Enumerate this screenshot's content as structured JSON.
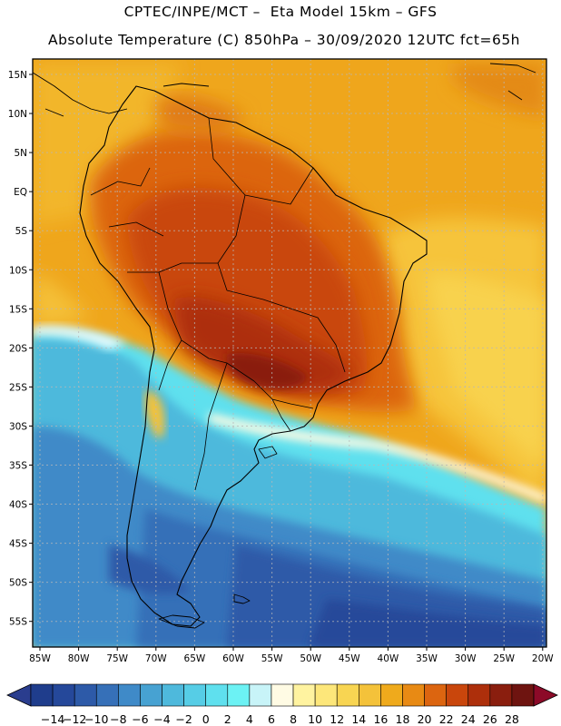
{
  "header": {
    "line1": "CPTEC/INPE/MCT –  Eta Model 15km – GFS",
    "line2": "Absolute Temperature (C) 850hPa – 30/09/2020 12UTC fct=65h"
  },
  "axes": {
    "lat_labels": [
      "15N",
      "10N",
      "5N",
      "EQ",
      "5S",
      "10S",
      "15S",
      "20S",
      "25S",
      "30S",
      "35S",
      "40S",
      "45S",
      "50S",
      "55S"
    ],
    "lon_labels": [
      "85W",
      "80W",
      "75W",
      "70W",
      "65W",
      "60W",
      "55W",
      "50W",
      "45W",
      "40W",
      "35W",
      "30W",
      "25W",
      "20W"
    ]
  },
  "colorbar": {
    "labels": [
      "-14",
      "-12",
      "-10",
      "-8",
      "-6",
      "-4",
      "-2",
      "0",
      "2",
      "4",
      "6",
      "8",
      "10",
      "12",
      "14",
      "16",
      "18",
      "20",
      "22",
      "24",
      "26",
      "28"
    ],
    "colors": [
      "#1f3d8c",
      "#25489a",
      "#2d5aa8",
      "#3670b8",
      "#3f8ac8",
      "#47a2d2",
      "#4eb9dc",
      "#56cde6",
      "#5fe0ee",
      "#6cf2f4",
      "#c8f4f8",
      "#fffbe4",
      "#fff3a0",
      "#fde77a",
      "#f8d552",
      "#f4c23a",
      "#efaa1c",
      "#e88a14",
      "#dc6510",
      "#c9460c",
      "#ad2f0b",
      "#8a1e0e",
      "#6e1410",
      "#8c0a28"
    ],
    "under_color": "#2a3d8e",
    "over_color": "#8c0a28"
  },
  "map": {
    "region": "South America",
    "variable": "Absolute Temperature (C) 850hPa",
    "valid": "30/09/2020 12UTC",
    "forecast": "fct=65h"
  }
}
